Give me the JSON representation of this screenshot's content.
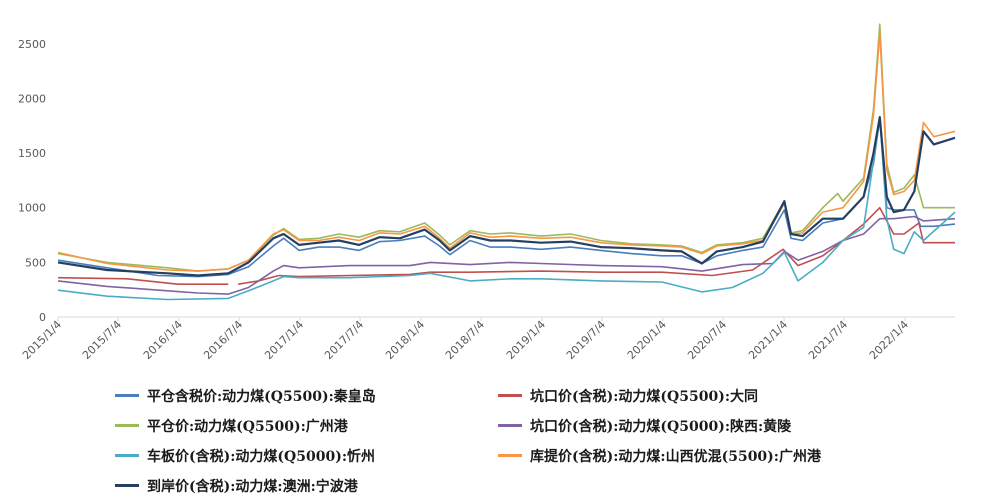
{
  "chart_data": {
    "type": "line",
    "ylim": [
      0,
      2700
    ],
    "yticks": [
      0,
      500,
      1000,
      1500,
      2000,
      2500
    ],
    "xlim": [
      "2015-01-04",
      "2022-06-04"
    ],
    "xticks": [
      "2015/1/4",
      "2015/7/4",
      "2016/1/4",
      "2016/7/4",
      "2017/1/4",
      "2017/7/4",
      "2018/1/4",
      "2018/7/4",
      "2019/1/4",
      "2019/7/4",
      "2020/1/4",
      "2020/7/4",
      "2021/1/4",
      "2021/7/4",
      "2022/1/4"
    ],
    "grid": false,
    "legend_position": "bottom",
    "series": [
      {
        "name": "平仓含税价:动力煤(Q5500):秦皇岛",
        "color": "#4a7ebb",
        "points": [
          [
            "2015-01-04",
            520
          ],
          [
            "2015-06-01",
            450
          ],
          [
            "2015-11-01",
            380
          ],
          [
            "2016-03-01",
            370
          ],
          [
            "2016-06-01",
            390
          ],
          [
            "2016-08-01",
            460
          ],
          [
            "2016-10-15",
            650
          ],
          [
            "2016-11-15",
            720
          ],
          [
            "2017-01-01",
            610
          ],
          [
            "2017-03-01",
            640
          ],
          [
            "2017-05-01",
            640
          ],
          [
            "2017-07-01",
            610
          ],
          [
            "2017-09-01",
            690
          ],
          [
            "2017-11-01",
            700
          ],
          [
            "2018-01-15",
            740
          ],
          [
            "2018-03-01",
            650
          ],
          [
            "2018-04-01",
            570
          ],
          [
            "2018-06-01",
            700
          ],
          [
            "2018-08-01",
            640
          ],
          [
            "2018-10-01",
            640
          ],
          [
            "2019-01-01",
            620
          ],
          [
            "2019-04-01",
            640
          ],
          [
            "2019-07-01",
            610
          ],
          [
            "2019-10-01",
            580
          ],
          [
            "2020-01-01",
            560
          ],
          [
            "2020-03-01",
            560
          ],
          [
            "2020-05-01",
            490
          ],
          [
            "2020-06-15",
            560
          ],
          [
            "2020-09-01",
            610
          ],
          [
            "2020-11-01",
            640
          ],
          [
            "2021-01-05",
            980
          ],
          [
            "2021-01-25",
            720
          ],
          [
            "2021-03-01",
            700
          ],
          [
            "2021-05-01",
            860
          ],
          [
            "2021-07-01",
            900
          ],
          [
            "2021-09-01",
            1100
          ],
          [
            "2021-10-01",
            1400
          ],
          [
            "2021-10-20",
            1820
          ],
          [
            "2021-11-10",
            1000
          ],
          [
            "2021-12-01",
            980
          ],
          [
            "2022-01-01",
            980
          ],
          [
            "2022-02-01",
            980
          ],
          [
            "2022-02-20",
            830
          ],
          [
            "2022-04-01",
            830
          ],
          [
            "2022-06-04",
            850
          ]
        ]
      },
      {
        "name": "坑口价(含税):动力煤(Q5500):大同",
        "color": "#c0504d",
        "points": [
          [
            "2015-01-04",
            360
          ],
          [
            "2015-08-01",
            350
          ],
          [
            "2016-01-01",
            300
          ],
          [
            "2016-06-01",
            300
          ],
          [
            "2016-06-02",
            null
          ],
          [
            "2016-07-01",
            300
          ],
          [
            "2016-09-01",
            330
          ],
          [
            "2016-11-01",
            380
          ],
          [
            "2017-01-01",
            370
          ],
          [
            "2017-06-01",
            380
          ],
          [
            "2017-12-01",
            390
          ],
          [
            "2018-02-01",
            410
          ],
          [
            "2018-06-01",
            410
          ],
          [
            "2019-01-01",
            420
          ],
          [
            "2019-07-01",
            410
          ],
          [
            "2020-01-01",
            410
          ],
          [
            "2020-06-01",
            380
          ],
          [
            "2020-10-01",
            430
          ],
          [
            "2021-01-01",
            620
          ],
          [
            "2021-02-15",
            470
          ],
          [
            "2021-05-01",
            560
          ],
          [
            "2021-07-01",
            700
          ],
          [
            "2021-09-01",
            850
          ],
          [
            "2021-10-20",
            1000
          ],
          [
            "2021-12-01",
            760
          ],
          [
            "2022-01-01",
            760
          ],
          [
            "2022-02-15",
            860
          ],
          [
            "2022-03-01",
            680
          ],
          [
            "2022-06-04",
            680
          ]
        ]
      },
      {
        "name": "平仓价:动力煤(Q5500):广州港",
        "color": "#9bbb59",
        "points": [
          [
            "2015-01-04",
            580
          ],
          [
            "2015-06-01",
            500
          ],
          [
            "2015-12-01",
            450
          ],
          [
            "2016-03-01",
            420
          ],
          [
            "2016-06-01",
            440
          ],
          [
            "2016-08-01",
            520
          ],
          [
            "2016-10-15",
            750
          ],
          [
            "2016-11-15",
            810
          ],
          [
            "2017-01-01",
            710
          ],
          [
            "2017-03-01",
            720
          ],
          [
            "2017-05-01",
            760
          ],
          [
            "2017-07-01",
            730
          ],
          [
            "2017-09-01",
            790
          ],
          [
            "2017-11-01",
            780
          ],
          [
            "2018-01-15",
            860
          ],
          [
            "2018-03-01",
            750
          ],
          [
            "2018-04-01",
            660
          ],
          [
            "2018-06-01",
            790
          ],
          [
            "2018-08-01",
            760
          ],
          [
            "2018-10-01",
            770
          ],
          [
            "2019-01-01",
            740
          ],
          [
            "2019-04-01",
            760
          ],
          [
            "2019-07-01",
            700
          ],
          [
            "2019-10-01",
            670
          ],
          [
            "2020-01-01",
            660
          ],
          [
            "2020-03-01",
            650
          ],
          [
            "2020-05-01",
            590
          ],
          [
            "2020-06-15",
            660
          ],
          [
            "2020-09-01",
            680
          ],
          [
            "2020-11-01",
            720
          ],
          [
            "2021-01-05",
            1060
          ],
          [
            "2021-01-25",
            770
          ],
          [
            "2021-03-01",
            790
          ],
          [
            "2021-05-01",
            1000
          ],
          [
            "2021-06-15",
            1130
          ],
          [
            "2021-07-01",
            1060
          ],
          [
            "2021-09-01",
            1270
          ],
          [
            "2021-10-01",
            1900
          ],
          [
            "2021-10-20",
            2680
          ],
          [
            "2021-11-10",
            1400
          ],
          [
            "2021-12-01",
            1140
          ],
          [
            "2022-01-01",
            1180
          ],
          [
            "2022-02-01",
            1300
          ],
          [
            "2022-03-01",
            1000
          ],
          [
            "2022-06-04",
            1000
          ]
        ]
      },
      {
        "name": "坑口价(含税):动力煤(Q5000):陕西:黄陵",
        "color": "#8064a2",
        "points": [
          [
            "2015-01-04",
            330
          ],
          [
            "2015-06-01",
            280
          ],
          [
            "2015-12-01",
            240
          ],
          [
            "2016-03-01",
            220
          ],
          [
            "2016-06-01",
            210
          ],
          [
            "2016-08-01",
            270
          ],
          [
            "2016-10-15",
            420
          ],
          [
            "2016-11-15",
            470
          ],
          [
            "2017-01-01",
            450
          ],
          [
            "2017-06-01",
            470
          ],
          [
            "2017-12-01",
            470
          ],
          [
            "2018-02-01",
            500
          ],
          [
            "2018-06-01",
            480
          ],
          [
            "2018-10-01",
            500
          ],
          [
            "2019-01-01",
            490
          ],
          [
            "2019-07-01",
            470
          ],
          [
            "2020-01-01",
            460
          ],
          [
            "2020-05-01",
            420
          ],
          [
            "2020-09-01",
            480
          ],
          [
            "2020-12-01",
            490
          ],
          [
            "2021-01-05",
            600
          ],
          [
            "2021-02-15",
            520
          ],
          [
            "2021-05-01",
            600
          ],
          [
            "2021-07-01",
            700
          ],
          [
            "2021-09-01",
            760
          ],
          [
            "2021-10-20",
            900
          ],
          [
            "2021-12-01",
            900
          ],
          [
            "2022-02-01",
            920
          ],
          [
            "2022-03-01",
            880
          ],
          [
            "2022-06-04",
            900
          ]
        ]
      },
      {
        "name": "车板价(含税):动力煤(Q5000):忻州",
        "color": "#4bacc6",
        "points": [
          [
            "2015-01-04",
            245
          ],
          [
            "2015-06-01",
            190
          ],
          [
            "2015-12-01",
            160
          ],
          [
            "2016-06-01",
            170
          ],
          [
            "2016-08-01",
            240
          ],
          [
            "2016-10-15",
            330
          ],
          [
            "2016-11-15",
            370
          ],
          [
            "2017-01-01",
            360
          ],
          [
            "2017-06-01",
            360
          ],
          [
            "2017-12-01",
            380
          ],
          [
            "2018-02-01",
            400
          ],
          [
            "2018-06-01",
            330
          ],
          [
            "2018-10-01",
            350
          ],
          [
            "2019-01-01",
            350
          ],
          [
            "2019-07-01",
            330
          ],
          [
            "2020-01-01",
            320
          ],
          [
            "2020-05-01",
            230
          ],
          [
            "2020-08-01",
            270
          ],
          [
            "2020-11-01",
            400
          ],
          [
            "2021-01-05",
            590
          ],
          [
            "2021-02-15",
            330
          ],
          [
            "2021-05-01",
            500
          ],
          [
            "2021-07-01",
            700
          ],
          [
            "2021-09-01",
            820
          ],
          [
            "2021-10-20",
            1820
          ],
          [
            "2021-11-10",
            900
          ],
          [
            "2021-12-01",
            620
          ],
          [
            "2022-01-01",
            580
          ],
          [
            "2022-02-01",
            780
          ],
          [
            "2022-03-01",
            700
          ],
          [
            "2022-06-04",
            960
          ]
        ]
      },
      {
        "name": "库提价(含税):动力煤:山西优混(5500):广州港",
        "color": "#f79646",
        "points": [
          [
            "2015-01-04",
            590
          ],
          [
            "2015-06-01",
            490
          ],
          [
            "2015-12-01",
            430
          ],
          [
            "2016-03-01",
            420
          ],
          [
            "2016-06-01",
            440
          ],
          [
            "2016-08-01",
            520
          ],
          [
            "2016-10-15",
            760
          ],
          [
            "2016-11-15",
            800
          ],
          [
            "2017-01-01",
            700
          ],
          [
            "2017-03-01",
            700
          ],
          [
            "2017-05-01",
            730
          ],
          [
            "2017-07-01",
            700
          ],
          [
            "2017-09-01",
            770
          ],
          [
            "2017-11-01",
            760
          ],
          [
            "2018-01-15",
            830
          ],
          [
            "2018-03-01",
            720
          ],
          [
            "2018-04-01",
            630
          ],
          [
            "2018-06-01",
            770
          ],
          [
            "2018-08-01",
            730
          ],
          [
            "2018-10-01",
            740
          ],
          [
            "2019-01-01",
            720
          ],
          [
            "2019-04-01",
            730
          ],
          [
            "2019-07-01",
            680
          ],
          [
            "2019-10-01",
            660
          ],
          [
            "2020-01-01",
            650
          ],
          [
            "2020-03-01",
            640
          ],
          [
            "2020-05-01",
            580
          ],
          [
            "2020-06-15",
            650
          ],
          [
            "2020-09-01",
            670
          ],
          [
            "2020-11-01",
            700
          ],
          [
            "2021-01-05",
            1040
          ],
          [
            "2021-01-25",
            760
          ],
          [
            "2021-03-01",
            770
          ],
          [
            "2021-05-01",
            960
          ],
          [
            "2021-07-01",
            1000
          ],
          [
            "2021-09-01",
            1240
          ],
          [
            "2021-10-01",
            1850
          ],
          [
            "2021-10-20",
            2600
          ],
          [
            "2021-11-10",
            1350
          ],
          [
            "2021-12-01",
            1120
          ],
          [
            "2022-01-01",
            1150
          ],
          [
            "2022-02-01",
            1250
          ],
          [
            "2022-03-01",
            1780
          ],
          [
            "2022-04-01",
            1650
          ],
          [
            "2022-06-04",
            1700
          ]
        ]
      },
      {
        "name": "到岸价(含税):动力煤:澳洲:宁波港",
        "color": "#243f60",
        "points": [
          [
            "2015-01-04",
            500
          ],
          [
            "2015-06-01",
            430
          ],
          [
            "2015-12-01",
            400
          ],
          [
            "2016-03-01",
            380
          ],
          [
            "2016-06-01",
            400
          ],
          [
            "2016-08-01",
            500
          ],
          [
            "2016-10-15",
            720
          ],
          [
            "2016-11-15",
            760
          ],
          [
            "2017-01-01",
            660
          ],
          [
            "2017-03-01",
            680
          ],
          [
            "2017-05-01",
            700
          ],
          [
            "2017-07-01",
            660
          ],
          [
            "2017-09-01",
            730
          ],
          [
            "2017-11-01",
            720
          ],
          [
            "2018-01-15",
            800
          ],
          [
            "2018-03-01",
            700
          ],
          [
            "2018-04-01",
            610
          ],
          [
            "2018-06-01",
            740
          ],
          [
            "2018-08-01",
            700
          ],
          [
            "2018-10-01",
            700
          ],
          [
            "2019-01-01",
            680
          ],
          [
            "2019-04-01",
            690
          ],
          [
            "2019-07-01",
            640
          ],
          [
            "2019-10-01",
            630
          ],
          [
            "2020-01-01",
            610
          ],
          [
            "2020-03-01",
            600
          ],
          [
            "2020-05-01",
            490
          ],
          [
            "2020-06-15",
            600
          ],
          [
            "2020-09-01",
            640
          ],
          [
            "2020-11-01",
            690
          ],
          [
            "2021-01-05",
            1060
          ],
          [
            "2021-01-25",
            760
          ],
          [
            "2021-03-01",
            740
          ],
          [
            "2021-05-01",
            900
          ],
          [
            "2021-07-01",
            900
          ],
          [
            "2021-09-01",
            1100
          ],
          [
            "2021-10-01",
            1500
          ],
          [
            "2021-10-20",
            1830
          ],
          [
            "2021-11-10",
            1100
          ],
          [
            "2021-12-01",
            960
          ],
          [
            "2022-01-01",
            980
          ],
          [
            "2022-02-01",
            1150
          ],
          [
            "2022-03-01",
            1700
          ],
          [
            "2022-04-01",
            1580
          ],
          [
            "2022-06-04",
            1640
          ]
        ]
      }
    ]
  }
}
